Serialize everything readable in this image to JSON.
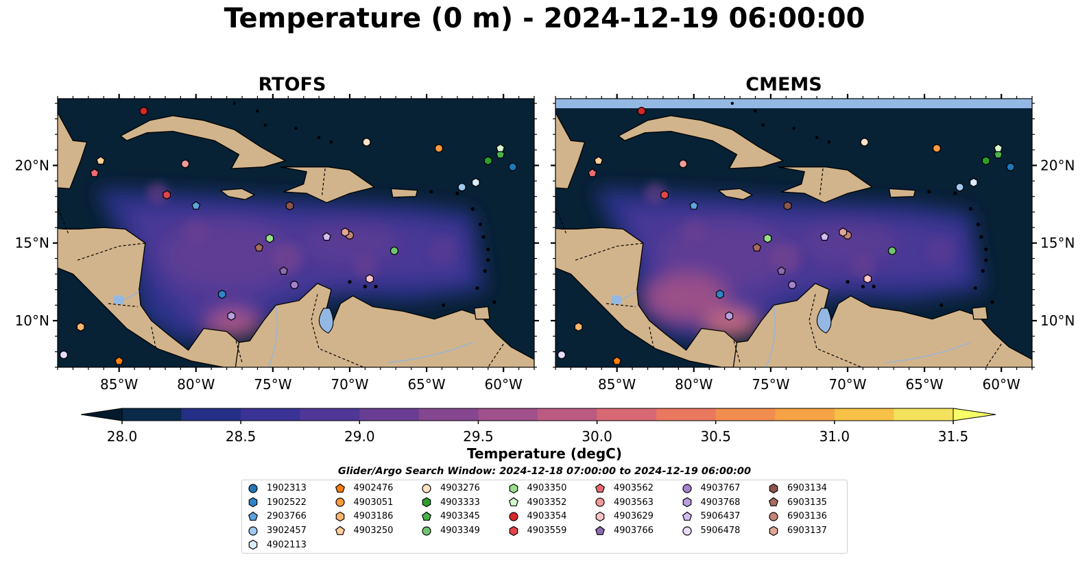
{
  "title": "Temperature (0 m) - 2024-12-19 06:00:00",
  "panels": [
    {
      "title": "RTOFS"
    },
    {
      "title": "CMEMS"
    }
  ],
  "map": {
    "lon_range": [
      -89.0,
      -58.0
    ],
    "lat_range": [
      7.0,
      24.3
    ],
    "lon_ticks": [
      "85°W",
      "80°W",
      "75°W",
      "70°W",
      "65°W",
      "60°W"
    ],
    "lat_ticks": [
      "20°N",
      "15°N",
      "10°N"
    ],
    "land_color": "#d2b48c",
    "deep_water_color": "#072135",
    "river_lake_color": "#94b8e4"
  },
  "colorbar": {
    "label": "Temperature (degC)",
    "min": 28.0,
    "max": 31.5,
    "step": 0.25,
    "ticks": [
      "28.0",
      "28.5",
      "29.0",
      "29.5",
      "30.0",
      "30.5",
      "31.0",
      "31.5"
    ],
    "colors": [
      "#092a48",
      "#262f86",
      "#3a3295",
      "#4e3797",
      "#693e92",
      "#84468f",
      "#a0508a",
      "#bb5b82",
      "#d86874",
      "#e9785f",
      "#f18d4e",
      "#f5a344",
      "#f7c046",
      "#f4e25c"
    ]
  },
  "search_window": "Glider/Argo Search Window: 2024-12-18 07:00:00 to 2024-12-19 06:00:00",
  "legend": [
    {
      "id": "1902313",
      "marker": "circle",
      "color": "#1f77b4"
    },
    {
      "id": "1902522",
      "marker": "hexagon",
      "color": "#2f85c8"
    },
    {
      "id": "2903766",
      "marker": "pentagon",
      "color": "#5fa2dd"
    },
    {
      "id": "3902457",
      "marker": "circle",
      "color": "#9ec9f0"
    },
    {
      "id": "4902113",
      "marker": "hexagon",
      "color": "#d9ecfc"
    },
    {
      "id": "4902476",
      "marker": "pentagon",
      "color": "#ff7f0e"
    },
    {
      "id": "4903051",
      "marker": "circle",
      "color": "#ff9a3d"
    },
    {
      "id": "4903186",
      "marker": "hexagon",
      "color": "#ffb46c"
    },
    {
      "id": "4903250",
      "marker": "pentagon",
      "color": "#ffcf9a"
    },
    {
      "id": "4903276",
      "marker": "circle",
      "color": "#ffe2c6"
    },
    {
      "id": "4903333",
      "marker": "hexagon",
      "color": "#2ca02c"
    },
    {
      "id": "4903345",
      "marker": "pentagon",
      "color": "#49b249"
    },
    {
      "id": "4903349",
      "marker": "circle",
      "color": "#6fc56f"
    },
    {
      "id": "4903350",
      "marker": "hexagon",
      "color": "#98df8a"
    },
    {
      "id": "4903352",
      "marker": "pentagon",
      "color": "#d6f7cd"
    },
    {
      "id": "4903354",
      "marker": "circle",
      "color": "#d62728"
    },
    {
      "id": "4903559",
      "marker": "hexagon",
      "color": "#e0474a"
    },
    {
      "id": "4903562",
      "marker": "pentagon",
      "color": "#eb6b70"
    },
    {
      "id": "4903563",
      "marker": "circle",
      "color": "#f19a9a"
    },
    {
      "id": "4903629",
      "marker": "hexagon",
      "color": "#fbc3c6"
    },
    {
      "id": "4903766",
      "marker": "pentagon",
      "color": "#8c6bb1"
    },
    {
      "id": "4903767",
      "marker": "circle",
      "color": "#a582cf"
    },
    {
      "id": "4903768",
      "marker": "hexagon",
      "color": "#bb9ee0"
    },
    {
      "id": "5906437",
      "marker": "pentagon",
      "color": "#d2bdf2"
    },
    {
      "id": "5906478",
      "marker": "circle",
      "color": "#e8dcfb"
    },
    {
      "id": "6903134",
      "marker": "hexagon",
      "color": "#8c564b"
    },
    {
      "id": "6903135",
      "marker": "pentagon",
      "color": "#a86b5f"
    },
    {
      "id": "6903136",
      "marker": "circle",
      "color": "#c4867a"
    },
    {
      "id": "6903137",
      "marker": "hexagon",
      "color": "#e0a696"
    }
  ],
  "floats": [
    {
      "id": "1902313",
      "lon": -59.4,
      "lat": 19.9
    },
    {
      "id": "2903766",
      "lon": -80.0,
      "lat": 17.4
    },
    {
      "id": "3902457",
      "lon": -62.7,
      "lat": 18.6
    },
    {
      "id": "4902113",
      "lon": -61.8,
      "lat": 18.9
    },
    {
      "id": "4902476",
      "lon": -85.0,
      "lat": 7.4
    },
    {
      "id": "4903051",
      "lon": -64.2,
      "lat": 21.1
    },
    {
      "id": "4903186",
      "lon": -87.5,
      "lat": 9.6
    },
    {
      "id": "4903250",
      "lon": -86.2,
      "lat": 20.3
    },
    {
      "id": "4903276",
      "lon": -68.9,
      "lat": 21.5
    },
    {
      "id": "4903333",
      "lon": -61.0,
      "lat": 20.3
    },
    {
      "id": "4903345",
      "lon": -60.2,
      "lat": 20.7
    },
    {
      "id": "4903349",
      "lon": -67.1,
      "lat": 14.5
    },
    {
      "id": "4903350",
      "lon": -75.2,
      "lat": 15.3
    },
    {
      "id": "4903352",
      "lon": -60.2,
      "lat": 21.1
    },
    {
      "id": "4903354",
      "lon": -83.4,
      "lat": 23.5
    },
    {
      "id": "4903559",
      "lon": -81.9,
      "lat": 18.1
    },
    {
      "id": "4903562",
      "lon": -86.6,
      "lat": 19.5
    },
    {
      "id": "4903563",
      "lon": -80.7,
      "lat": 20.1
    },
    {
      "id": "4903629",
      "lon": -68.7,
      "lat": 12.7
    },
    {
      "id": "4903766",
      "lon": -74.3,
      "lat": 13.2
    },
    {
      "id": "4903767",
      "lon": -73.6,
      "lat": 12.3
    },
    {
      "id": "5906437",
      "lon": -71.5,
      "lat": 15.4
    },
    {
      "id": "5906478",
      "lon": -88.6,
      "lat": 7.8
    },
    {
      "id": "6903134",
      "lon": -73.9,
      "lat": 17.4
    },
    {
      "id": "6903135",
      "lon": -75.9,
      "lat": 14.7
    },
    {
      "id": "6903136",
      "lon": -70.0,
      "lat": 15.5
    },
    {
      "id": "6903137",
      "lon": -70.3,
      "lat": 15.7
    },
    {
      "id": "4903768",
      "lon": -77.7,
      "lat": 10.3
    },
    {
      "id": "1902522",
      "lon": -78.3,
      "lat": 11.7
    }
  ]
}
